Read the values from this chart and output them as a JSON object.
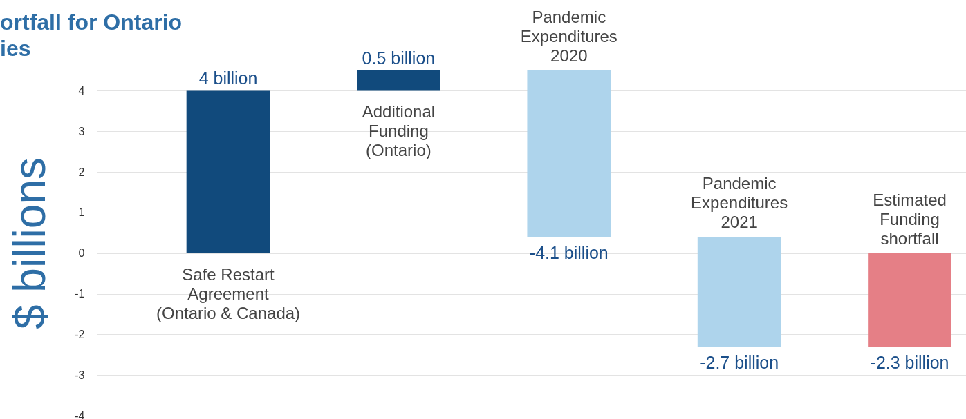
{
  "chart_data": {
    "type": "bar",
    "title": "ortfall for Ontario\nies",
    "ylabel": "$ billions",
    "categories": [
      "Safe Restart\nAgreement\n(Ontario & Canada)",
      "Additional\nFunding\n(Ontario)",
      "Pandemic\nExpenditures\n2020",
      "Pandemic\nExpenditures\n2021",
      "Estimated\nFunding\nshortfall"
    ],
    "values": [
      4,
      0.5,
      -4.1,
      -2.7,
      -2.3
    ],
    "base": [
      0,
      4,
      4.5,
      0.4,
      0
    ],
    "colors": [
      "#114a7c",
      "#114a7c",
      "#aed4ec",
      "#aed4ec",
      "#e57f86"
    ],
    "value_labels": [
      "4 billion",
      "0.5 billion",
      "-4.1 billion",
      "-2.7 billion",
      "-2.3 billion"
    ],
    "ylim": [
      -4,
      4.5
    ],
    "yticks": [
      -4,
      -3,
      -2,
      -1,
      0,
      1,
      2,
      3,
      4
    ],
    "grid": "y",
    "tick_labels": "y"
  }
}
